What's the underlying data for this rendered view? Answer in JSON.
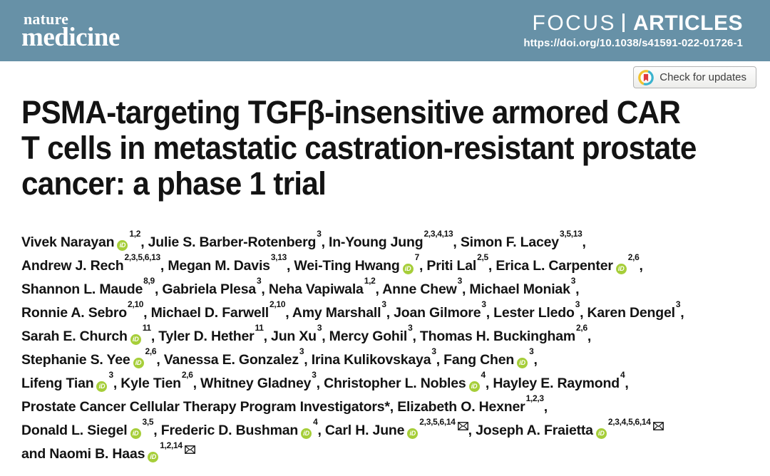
{
  "journal": {
    "logo_line1": "nature",
    "logo_line2": "medicine",
    "section_focus": "FOCUS",
    "section_articles": "ARTICLES",
    "doi": "https://doi.org/10.1038/s41591-022-01726-1"
  },
  "badge": {
    "label": "Check for updates",
    "icon": "crossmark-icon"
  },
  "article": {
    "title_lines": [
      "PSMA-targeting TGFβ-insensitive armored CAR",
      "T cells in metastatic castration-resistant prostate",
      "cancer: a phase 1 trial"
    ]
  },
  "colors": {
    "header_bg": "#6791a7",
    "orcid_green": "#a6ce39",
    "title_text": "#131313",
    "badge_border": "#b3b3b3",
    "crossmark_red": "#e03a3e",
    "crossmark_yellow": "#f2c22e",
    "crossmark_teal": "#3bb3ce"
  },
  "authors": {
    "orcid_icon_label": "iD",
    "lines": [
      [
        {
          "n": "Vivek Narayan",
          "o": true,
          "s": "1,2",
          "t": ", "
        },
        {
          "n": "Julie S. Barber-Rotenberg",
          "s": "3",
          "t": ", "
        },
        {
          "n": "In-Young Jung",
          "s": "2,3,4,13",
          "t": ", "
        },
        {
          "n": "Simon F. Lacey",
          "s": "3,5,13",
          "t": ","
        }
      ],
      [
        {
          "n": "Andrew J. Rech",
          "s": "2,3,5,6,13",
          "t": ", "
        },
        {
          "n": "Megan M. Davis",
          "s": "3,13",
          "t": ", "
        },
        {
          "n": "Wei-Ting Hwang",
          "o": true,
          "s": "7",
          "t": ", "
        },
        {
          "n": "Priti Lal",
          "s": "2,5",
          "t": ", "
        },
        {
          "n": "Erica L. Carpenter",
          "o": true,
          "s": "2,6",
          "t": ","
        }
      ],
      [
        {
          "n": "Shannon L. Maude",
          "s": "8,9",
          "t": ", "
        },
        {
          "n": "Gabriela Plesa",
          "s": "3",
          "t": ", "
        },
        {
          "n": "Neha Vapiwala",
          "s": "1,2",
          "t": ", "
        },
        {
          "n": "Anne Chew",
          "s": "3",
          "t": ", "
        },
        {
          "n": "Michael Moniak",
          "s": "3",
          "t": ","
        }
      ],
      [
        {
          "n": "Ronnie A. Sebro",
          "s": "2,10",
          "t": ", "
        },
        {
          "n": "Michael D. Farwell",
          "s": "2,10",
          "t": ", "
        },
        {
          "n": "Amy Marshall",
          "s": "3",
          "t": ", "
        },
        {
          "n": "Joan Gilmore",
          "s": "3",
          "t": ", "
        },
        {
          "n": "Lester Lledo",
          "s": "3",
          "t": ", "
        },
        {
          "n": "Karen Dengel",
          "s": "3",
          "t": ","
        }
      ],
      [
        {
          "n": "Sarah E. Church",
          "o": true,
          "s": "11",
          "t": ", "
        },
        {
          "n": "Tyler D. Hether",
          "s": "11",
          "t": ", "
        },
        {
          "n": "Jun Xu",
          "s": "3",
          "t": ", "
        },
        {
          "n": "Mercy Gohil",
          "s": "3",
          "t": ", "
        },
        {
          "n": "Thomas H. Buckingham",
          "s": "2,6",
          "t": ","
        }
      ],
      [
        {
          "n": "Stephanie S. Yee",
          "o": true,
          "s": "2,6",
          "t": ", "
        },
        {
          "n": "Vanessa E. Gonzalez",
          "s": "3",
          "t": ", "
        },
        {
          "n": "Irina Kulikovskaya",
          "s": "3",
          "t": ", "
        },
        {
          "n": "Fang Chen",
          "o": true,
          "s": "3",
          "t": ","
        }
      ],
      [
        {
          "n": "Lifeng Tian",
          "o": true,
          "s": "3",
          "t": ", "
        },
        {
          "n": "Kyle Tien",
          "s": "2,6",
          "t": ", "
        },
        {
          "n": "Whitney Gladney",
          "s": "3",
          "t": ", "
        },
        {
          "n": "Christopher L. Nobles",
          "o": true,
          "s": "4",
          "t": ", "
        },
        {
          "n": "Hayley E. Raymond",
          "s": "4",
          "t": ","
        }
      ],
      [
        {
          "n": "Prostate Cancer Cellular Therapy Program Investigators*",
          "t": ", "
        },
        {
          "n": "Elizabeth O. Hexner",
          "s": "1,2,3",
          "t": ","
        }
      ],
      [
        {
          "n": "Donald L. Siegel",
          "o": true,
          "s": "3,5",
          "t": ", "
        },
        {
          "n": "Frederic D. Bushman",
          "o": true,
          "s": "4",
          "t": ", "
        },
        {
          "n": "Carl H. June",
          "o": true,
          "s": "2,3,5,6,14",
          "m": true,
          "t": ", "
        },
        {
          "n": "Joseph A. Fraietta",
          "o": true,
          "s": "2,3,4,5,6,14",
          "m": true,
          "t": ""
        }
      ],
      [
        {
          "n": "and Naomi B. Haas",
          "o": true,
          "s": "1,2,14",
          "m": true,
          "t": ""
        }
      ]
    ]
  }
}
